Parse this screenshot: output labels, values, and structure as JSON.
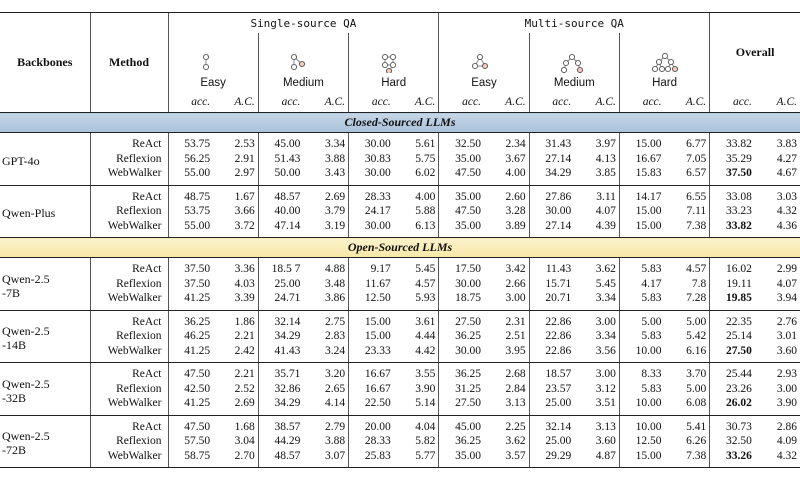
{
  "table": {
    "header": {
      "backbones": "Backbones",
      "method": "Method",
      "overall": "Overall",
      "groups": [
        {
          "name": "Single-source QA",
          "levels": [
            "Easy",
            "Medium",
            "Hard"
          ]
        },
        {
          "name": "Multi-source QA",
          "levels": [
            "Easy",
            "Medium",
            "Hard"
          ]
        }
      ],
      "metrics": [
        "acc.",
        "A.C."
      ]
    },
    "sections": [
      {
        "title": "Closed-Sourced LLMs",
        "groups": [
          {
            "backbone": [
              "GPT-4o"
            ],
            "rows": [
              {
                "method": "ReAct",
                "values": [
                  "53.75",
                  "2.53",
                  "45.00",
                  "3.34",
                  "30.00",
                  "5.61",
                  "32.50",
                  "2.34",
                  "31.43",
                  "3.97",
                  "15.00",
                  "6.77",
                  "33.82",
                  "3.83"
                ]
              },
              {
                "method": "Reflexion",
                "values": [
                  "56.25",
                  "2.91",
                  "51.43",
                  "3.88",
                  "30.83",
                  "5.75",
                  "35.00",
                  "3.67",
                  "27.14",
                  "4.13",
                  "16.67",
                  "7.05",
                  "35.29",
                  "4.27"
                ]
              },
              {
                "method": "WebWalker",
                "values": [
                  "55.00",
                  "2.97",
                  "50.00",
                  "3.43",
                  "30.00",
                  "6.02",
                  "47.50",
                  "4.00",
                  "34.29",
                  "3.85",
                  "15.83",
                  "6.57",
                  "37.50",
                  "4.67"
                ]
              }
            ]
          },
          {
            "backbone": [
              "Qwen-Plus"
            ],
            "rows": [
              {
                "method": "ReAct",
                "values": [
                  "48.75",
                  "1.67",
                  "48.57",
                  "2.69",
                  "28.33",
                  "4.00",
                  "35.00",
                  "2.60",
                  "27.86",
                  "3.11",
                  "14.17",
                  "6.55",
                  "33.08",
                  "3.03"
                ]
              },
              {
                "method": "Reflexion",
                "values": [
                  "53.75",
                  "3.66",
                  "40.00",
                  "3.79",
                  "24.17",
                  "5.88",
                  "47.50",
                  "3.28",
                  "30.00",
                  "4.07",
                  "15.00",
                  "7.11",
                  "33.23",
                  "4.32"
                ]
              },
              {
                "method": "WebWalker",
                "values": [
                  "55.00",
                  "3.72",
                  "47.14",
                  "3.19",
                  "30.00",
                  "6.13",
                  "35.00",
                  "3.89",
                  "27.14",
                  "4.39",
                  "15.00",
                  "7.38",
                  "33.82",
                  "4.36"
                ]
              }
            ]
          }
        ]
      },
      {
        "title": "Open-Sourced LLMs",
        "groups": [
          {
            "backbone": [
              "Qwen-2.5",
              "-7B"
            ],
            "rows": [
              {
                "method": "ReAct",
                "values": [
                  "37.50",
                  "3.36",
                  "18.5 7",
                  "4.88",
                  "9.17",
                  "5.45",
                  "17.50",
                  "3.42",
                  "11.43",
                  "3.62",
                  "5.83",
                  "4.57",
                  "16.02",
                  "2.99"
                ]
              },
              {
                "method": "Reflexion",
                "values": [
                  "37.50",
                  "4.03",
                  "25.00",
                  "3.48",
                  "11.67",
                  "4.57",
                  "30.00",
                  "2.66",
                  "15.71",
                  "5.45",
                  "4.17",
                  "7.8",
                  "19.11",
                  "4.07"
                ]
              },
              {
                "method": "WebWalker",
                "values": [
                  "41.25",
                  "3.39",
                  "24.71",
                  "3.86",
                  "12.50",
                  "5.93",
                  "18.75",
                  "3.00",
                  "20.71",
                  "3.34",
                  "5.83",
                  "7.28",
                  "19.85",
                  "3.94"
                ]
              }
            ]
          },
          {
            "backbone": [
              "Qwen-2.5",
              "-14B"
            ],
            "rows": [
              {
                "method": "ReAct",
                "values": [
                  "36.25",
                  "1.86",
                  "32.14",
                  "2.75",
                  "15.00",
                  "3.61",
                  "27.50",
                  "2.31",
                  "22.86",
                  "3.00",
                  "5.00",
                  "5.00",
                  "22.35",
                  "2.76"
                ]
              },
              {
                "method": "Reflexion",
                "values": [
                  "46.25",
                  "2.21",
                  "34.29",
                  "2.83",
                  "15.00",
                  "4.44",
                  "36.25",
                  "2.51",
                  "22.86",
                  "3.34",
                  "5.83",
                  "5.42",
                  "25.14",
                  "3.01"
                ]
              },
              {
                "method": "WebWalker",
                "values": [
                  "41.25",
                  "2.42",
                  "41.43",
                  "3.24",
                  "23.33",
                  "4.42",
                  "30.00",
                  "3.95",
                  "22.86",
                  "3.56",
                  "10.00",
                  "6.16",
                  "27.50",
                  "3.60"
                ]
              }
            ]
          },
          {
            "backbone": [
              "Qwen-2.5",
              "-32B"
            ],
            "rows": [
              {
                "method": "ReAct",
                "values": [
                  "47.50",
                  "2.21",
                  "35.71",
                  "3.20",
                  "16.67",
                  "3.55",
                  "36.25",
                  "2.68",
                  "18.57",
                  "3.00",
                  "8.33",
                  "3.70",
                  "25.44",
                  "2.93"
                ]
              },
              {
                "method": "Reflexion",
                "values": [
                  "42.50",
                  "2.52",
                  "32.86",
                  "2.65",
                  "16.67",
                  "3.90",
                  "31.25",
                  "2.84",
                  "23.57",
                  "3.12",
                  "5.83",
                  "5.00",
                  "23.26",
                  "3.00"
                ]
              },
              {
                "method": "WebWalker",
                "values": [
                  "41.25",
                  "2.69",
                  "34.29",
                  "4.14",
                  "22.50",
                  "5.14",
                  "27.50",
                  "3.13",
                  "25.00",
                  "3.51",
                  "10.00",
                  "6.08",
                  "26.02",
                  "3.90"
                ]
              }
            ]
          },
          {
            "backbone": [
              "Qwen-2.5",
              "-72B"
            ],
            "rows": [
              {
                "method": "ReAct",
                "values": [
                  "47.50",
                  "1.68",
                  "38.57",
                  "2.79",
                  "20.00",
                  "4.04",
                  "45.00",
                  "2.25",
                  "32.14",
                  "3.13",
                  "10.00",
                  "5.41",
                  "30.73",
                  "2.86"
                ]
              },
              {
                "method": "Reflexion",
                "values": [
                  "57.50",
                  "3.04",
                  "44.29",
                  "3.88",
                  "28.33",
                  "5.82",
                  "36.25",
                  "3.62",
                  "25.00",
                  "3.60",
                  "12.50",
                  "6.26",
                  "32.50",
                  "4.09"
                ]
              },
              {
                "method": "WebWalker",
                "values": [
                  "58.75",
                  "2.70",
                  "48.57",
                  "3.07",
                  "25.83",
                  "5.77",
                  "35.00",
                  "3.57",
                  "29.29",
                  "4.87",
                  "15.00",
                  "7.38",
                  "33.26",
                  "4.32"
                ]
              }
            ]
          }
        ]
      }
    ]
  }
}
